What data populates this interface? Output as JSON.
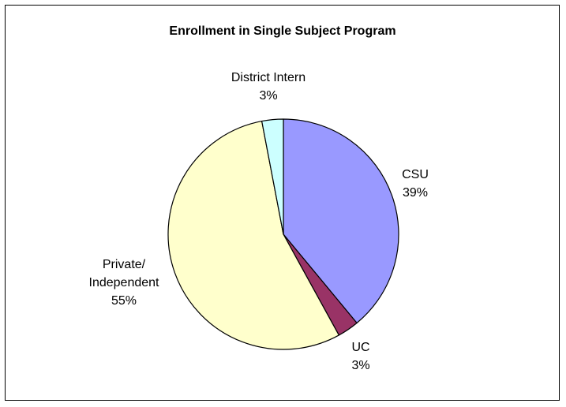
{
  "chart_data": {
    "type": "pie",
    "title": "Enrollment in Single Subject Program",
    "start_angle_deg": 0,
    "direction": "clockwise",
    "slices": [
      {
        "label": "CSU",
        "value": 39,
        "value_text": "39%",
        "color": "#9999ff"
      },
      {
        "label": "UC",
        "value": 3,
        "value_text": "3%",
        "color": "#993366"
      },
      {
        "label": "Private/ Independent",
        "label_lines": [
          "Private/",
          "Independent"
        ],
        "value": 55,
        "value_text": "55%",
        "color": "#ffffcc"
      },
      {
        "label": "District Intern",
        "value": 3,
        "value_text": "3%",
        "color": "#ccffff"
      }
    ],
    "legend": "none"
  }
}
